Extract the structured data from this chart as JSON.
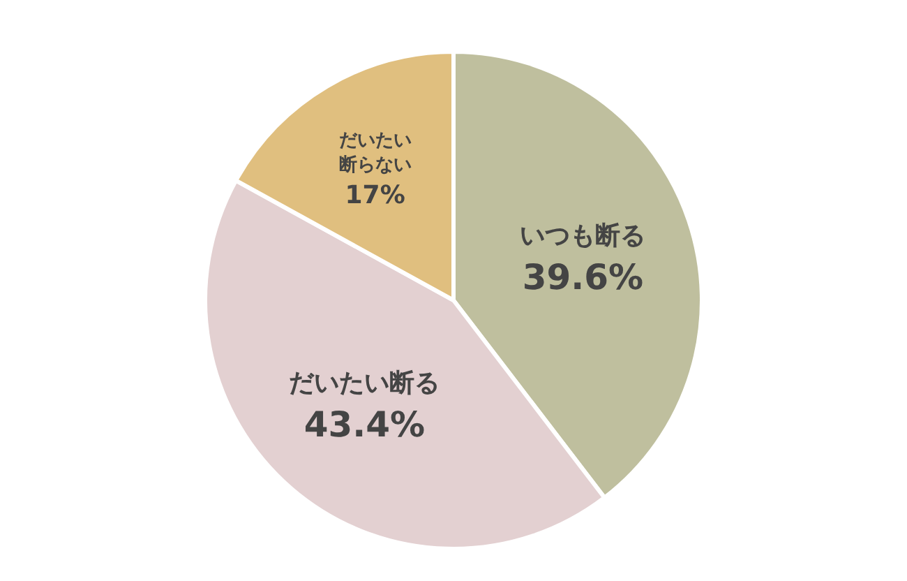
{
  "chart_data": {
    "type": "pie",
    "categories": [
      "いつも断る",
      "だいたい断る",
      "だいたい断らない"
    ],
    "values": [
      39.6,
      43.4,
      17
    ],
    "value_labels": [
      "39.6%",
      "43.4%",
      "17%"
    ],
    "colors": [
      "#bfbf9e",
      "#e3d0d1",
      "#e0bf7f"
    ],
    "legend": false
  }
}
